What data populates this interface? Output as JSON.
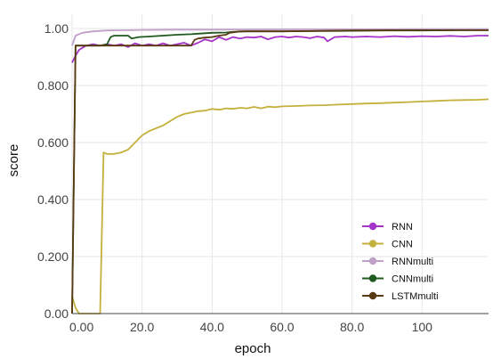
{
  "chart_data": {
    "type": "line",
    "xlabel": "epoch",
    "ylabel": "score",
    "xlim": [
      0,
      119
    ],
    "ylim": [
      0,
      1.05
    ],
    "x_ticks": [
      0,
      20,
      40,
      60,
      80,
      100
    ],
    "x_tick_labels": [
      "0.00",
      "20.0",
      "40.0",
      "60.0",
      "80.0",
      "100"
    ],
    "y_ticks": [
      0,
      0.2,
      0.4,
      0.6,
      0.8,
      1.0
    ],
    "y_tick_labels": [
      "0.00",
      "0.200",
      "0.400",
      "0.600",
      "0.800",
      "1.00"
    ],
    "grid": true,
    "legend_position": "bottom-right",
    "series": [
      {
        "name": "RNN",
        "color": "#a633c9",
        "points": [
          [
            0,
            0.88
          ],
          [
            1,
            0.905
          ],
          [
            2,
            0.925
          ],
          [
            4,
            0.94
          ],
          [
            6,
            0.945
          ],
          [
            8,
            0.94
          ],
          [
            10,
            0.945
          ],
          [
            12,
            0.94
          ],
          [
            14,
            0.945
          ],
          [
            16,
            0.935
          ],
          [
            18,
            0.948
          ],
          [
            20,
            0.94
          ],
          [
            22,
            0.945
          ],
          [
            24,
            0.94
          ],
          [
            26,
            0.948
          ],
          [
            28,
            0.94
          ],
          [
            30,
            0.945
          ],
          [
            32,
            0.95
          ],
          [
            34,
            0.94
          ],
          [
            36,
            0.95
          ],
          [
            38,
            0.962
          ],
          [
            40,
            0.955
          ],
          [
            42,
            0.97
          ],
          [
            44,
            0.96
          ],
          [
            46,
            0.97
          ],
          [
            48,
            0.965
          ],
          [
            50,
            0.97
          ],
          [
            52,
            0.968
          ],
          [
            54,
            0.972
          ],
          [
            56,
            0.962
          ],
          [
            58,
            0.97
          ],
          [
            60,
            0.972
          ],
          [
            62,
            0.968
          ],
          [
            64,
            0.972
          ],
          [
            66,
            0.97
          ],
          [
            68,
            0.966
          ],
          [
            70,
            0.972
          ],
          [
            72,
            0.968
          ],
          [
            73,
            0.955
          ],
          [
            75,
            0.97
          ],
          [
            78,
            0.972
          ],
          [
            80,
            0.97
          ],
          [
            84,
            0.972
          ],
          [
            88,
            0.97
          ],
          [
            92,
            0.973
          ],
          [
            96,
            0.971
          ],
          [
            100,
            0.973
          ],
          [
            104,
            0.972
          ],
          [
            108,
            0.974
          ],
          [
            112,
            0.972
          ],
          [
            116,
            0.975
          ],
          [
            119,
            0.975
          ]
        ]
      },
      {
        "name": "CNN",
        "color": "#c4b03c",
        "points": [
          [
            0,
            0.06
          ],
          [
            1,
            0.02
          ],
          [
            2,
            0.0
          ],
          [
            8,
            0.0
          ],
          [
            9,
            0.565
          ],
          [
            10,
            0.56
          ],
          [
            12,
            0.56
          ],
          [
            14,
            0.565
          ],
          [
            16,
            0.575
          ],
          [
            18,
            0.6
          ],
          [
            20,
            0.625
          ],
          [
            22,
            0.64
          ],
          [
            24,
            0.65
          ],
          [
            26,
            0.66
          ],
          [
            28,
            0.675
          ],
          [
            30,
            0.69
          ],
          [
            32,
            0.7
          ],
          [
            34,
            0.705
          ],
          [
            36,
            0.71
          ],
          [
            38,
            0.712
          ],
          [
            40,
            0.718
          ],
          [
            42,
            0.715
          ],
          [
            44,
            0.72
          ],
          [
            46,
            0.718
          ],
          [
            48,
            0.722
          ],
          [
            50,
            0.72
          ],
          [
            52,
            0.725
          ],
          [
            54,
            0.72
          ],
          [
            56,
            0.726
          ],
          [
            58,
            0.724
          ],
          [
            60,
            0.727
          ],
          [
            64,
            0.728
          ],
          [
            68,
            0.73
          ],
          [
            72,
            0.731
          ],
          [
            76,
            0.733
          ],
          [
            80,
            0.735
          ],
          [
            84,
            0.737
          ],
          [
            88,
            0.738
          ],
          [
            92,
            0.74
          ],
          [
            96,
            0.742
          ],
          [
            100,
            0.744
          ],
          [
            104,
            0.746
          ],
          [
            108,
            0.748
          ],
          [
            112,
            0.749
          ],
          [
            116,
            0.75
          ],
          [
            119,
            0.752
          ]
        ]
      },
      {
        "name": "RNNmulti",
        "color": "#c09fc9",
        "points": [
          [
            0,
            0.94
          ],
          [
            1,
            0.975
          ],
          [
            3,
            0.985
          ],
          [
            6,
            0.99
          ],
          [
            10,
            0.993
          ],
          [
            20,
            0.995
          ],
          [
            30,
            0.996
          ],
          [
            40,
            0.996
          ],
          [
            60,
            0.997
          ],
          [
            80,
            0.997
          ],
          [
            100,
            0.998
          ],
          [
            119,
            0.998
          ]
        ]
      },
      {
        "name": "CNNmulti",
        "color": "#1f5a1f",
        "points": [
          [
            0,
            0.0
          ],
          [
            1,
            0.94
          ],
          [
            8,
            0.94
          ],
          [
            10,
            0.945
          ],
          [
            11,
            0.97
          ],
          [
            12,
            0.975
          ],
          [
            16,
            0.975
          ],
          [
            17,
            0.965
          ],
          [
            19,
            0.97
          ],
          [
            22,
            0.972
          ],
          [
            26,
            0.975
          ],
          [
            30,
            0.978
          ],
          [
            34,
            0.98
          ],
          [
            36,
            0.982
          ],
          [
            40,
            0.985
          ],
          [
            44,
            0.986
          ],
          [
            46,
            0.988
          ],
          [
            50,
            0.99
          ],
          [
            60,
            0.99
          ],
          [
            70,
            0.991
          ],
          [
            80,
            0.992
          ],
          [
            90,
            0.993
          ],
          [
            100,
            0.993
          ],
          [
            110,
            0.994
          ],
          [
            119,
            0.994
          ]
        ]
      },
      {
        "name": "LSTMmulti",
        "color": "#5a3a12",
        "points": [
          [
            0,
            0.0
          ],
          [
            1,
            0.94
          ],
          [
            12,
            0.94
          ],
          [
            20,
            0.94
          ],
          [
            30,
            0.94
          ],
          [
            34,
            0.94
          ],
          [
            35,
            0.96
          ],
          [
            36,
            0.965
          ],
          [
            38,
            0.968
          ],
          [
            40,
            0.97
          ],
          [
            42,
            0.975
          ],
          [
            44,
            0.978
          ],
          [
            45,
            0.985
          ],
          [
            48,
            0.99
          ],
          [
            60,
            0.99
          ],
          [
            80,
            0.993
          ],
          [
            100,
            0.994
          ],
          [
            119,
            0.994
          ]
        ]
      }
    ]
  }
}
